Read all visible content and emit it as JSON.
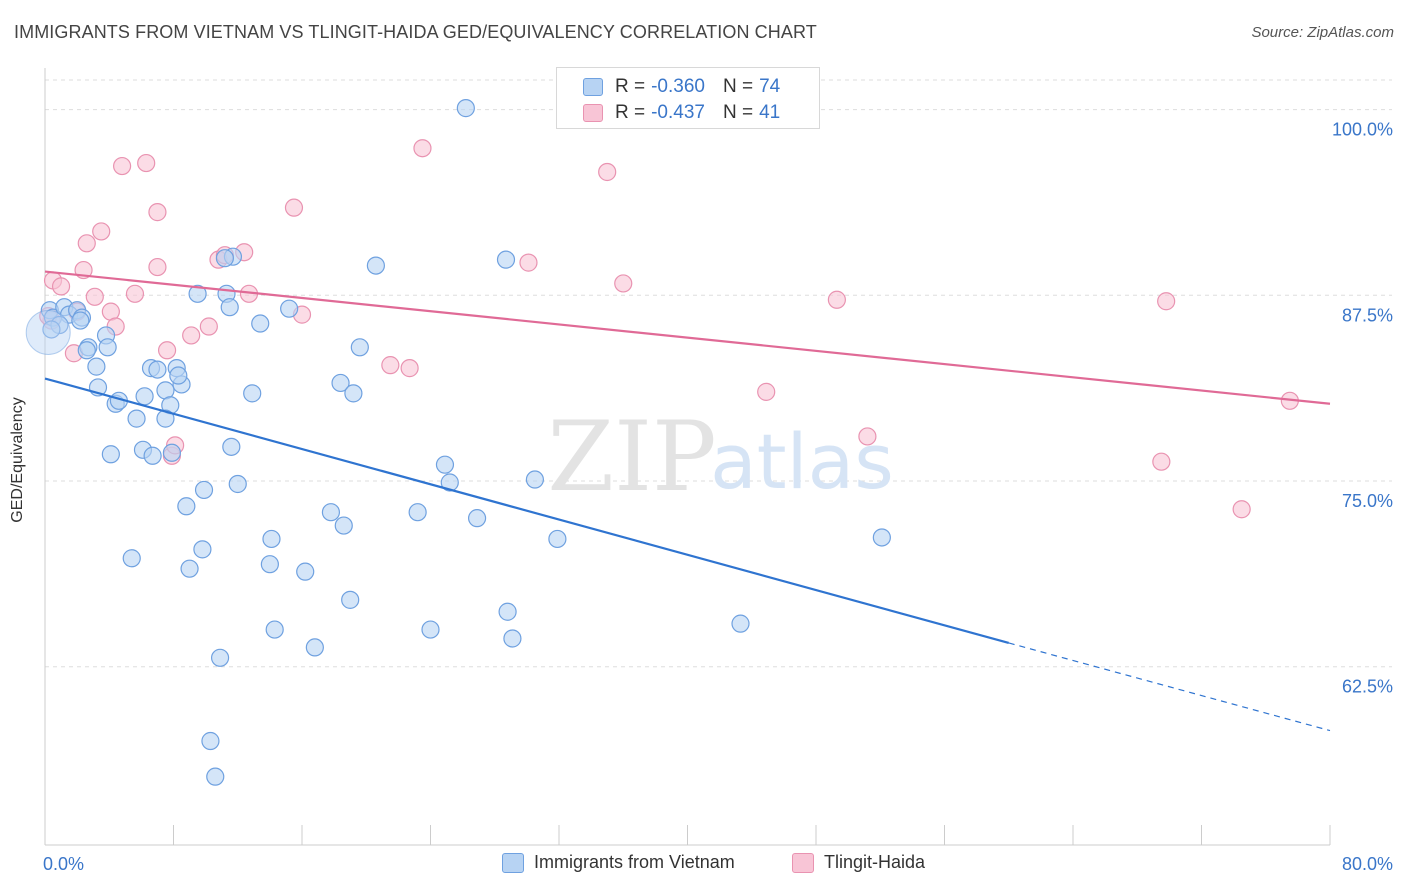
{
  "title": "IMMIGRANTS FROM VIETNAM VS TLINGIT-HAIDA GED/EQUIVALENCY CORRELATION CHART",
  "source": "Source: ZipAtlas.com",
  "watermark": {
    "zip": "ZIP",
    "atlas": "atlas"
  },
  "legend": {
    "r_label": "R =",
    "n_label": "N =",
    "series": [
      {
        "r": "-0.360",
        "n": "74"
      },
      {
        "r": "-0.437",
        "n": "41"
      }
    ]
  },
  "colors": {
    "blue_fill": "#b7d3f3",
    "blue_stroke": "#6fa1e0",
    "blue_line": "#2f74d0",
    "pink_fill": "#f8c5d6",
    "pink_stroke": "#e993b1",
    "pink_line": "#e06a96",
    "tick_label": "#3a76c9",
    "grid": "#dddddd"
  },
  "chart_data": {
    "type": "scatter",
    "title": "IMMIGRANTS FROM VIETNAM VS TLINGIT-HAIDA GED/EQUIVALENCY CORRELATION CHART",
    "xlabel": "",
    "ylabel": "GED/Equivalency",
    "xlim": [
      0,
      80
    ],
    "ylim": [
      50.5,
      102.8
    ],
    "x_tick_labels": [
      "0.0%",
      "80.0%"
    ],
    "y_ticks": [
      62.5,
      75.0,
      87.5,
      100.0
    ],
    "y_tick_labels": [
      "62.5%",
      "75.0%",
      "87.5%",
      "100.0%"
    ],
    "grid": true,
    "legend_position": "bottom",
    "series": [
      {
        "name": "Immigrants from Vietnam",
        "color": "#6fa1e0",
        "trend": {
          "x0": 0,
          "y0": 81.9,
          "x1": 60,
          "y1": 64.1,
          "dashed_to_x": 80,
          "dashed_to_y": 58.2
        },
        "points": [
          [
            0.3,
            86.5
          ],
          [
            0.5,
            86.0
          ],
          [
            1.2,
            86.7
          ],
          [
            1.5,
            86.2
          ],
          [
            2.0,
            86.5
          ],
          [
            2.3,
            86.0
          ],
          [
            0.9,
            85.5
          ],
          [
            2.2,
            85.8
          ],
          [
            2.7,
            84.0
          ],
          [
            3.8,
            84.8
          ],
          [
            2.6,
            83.8
          ],
          [
            3.9,
            84.0
          ],
          [
            3.2,
            82.7
          ],
          [
            6.6,
            82.6
          ],
          [
            7.0,
            82.5
          ],
          [
            8.2,
            82.6
          ],
          [
            8.5,
            81.5
          ],
          [
            8.3,
            82.1
          ],
          [
            3.3,
            81.3
          ],
          [
            4.4,
            80.2
          ],
          [
            4.6,
            80.4
          ],
          [
            6.2,
            80.7
          ],
          [
            7.5,
            81.1
          ],
          [
            7.8,
            80.1
          ],
          [
            5.7,
            79.2
          ],
          [
            7.5,
            79.2
          ],
          [
            6.1,
            77.1
          ],
          [
            4.1,
            76.8
          ],
          [
            6.7,
            76.7
          ],
          [
            7.9,
            76.9
          ],
          [
            11.6,
            77.3
          ],
          [
            12.0,
            74.8
          ],
          [
            9.9,
            74.4
          ],
          [
            11.7,
            90.1
          ],
          [
            11.2,
            90.0
          ],
          [
            9.5,
            87.6
          ],
          [
            11.3,
            87.6
          ],
          [
            11.5,
            86.7
          ],
          [
            13.4,
            85.6
          ],
          [
            15.2,
            86.6
          ],
          [
            12.9,
            80.9
          ],
          [
            8.8,
            73.3
          ],
          [
            17.8,
            72.9
          ],
          [
            18.6,
            72.0
          ],
          [
            14.1,
            71.1
          ],
          [
            9.8,
            70.4
          ],
          [
            5.4,
            69.8
          ],
          [
            9.0,
            69.1
          ],
          [
            14.0,
            69.4
          ],
          [
            16.2,
            68.9
          ],
          [
            19.0,
            67.0
          ],
          [
            14.3,
            65.0
          ],
          [
            16.8,
            63.8
          ],
          [
            10.9,
            63.1
          ],
          [
            10.3,
            57.5
          ],
          [
            10.6,
            55.1
          ],
          [
            19.6,
            84.0
          ],
          [
            20.6,
            89.5
          ],
          [
            18.4,
            81.6
          ],
          [
            19.2,
            80.9
          ],
          [
            24.9,
            76.1
          ],
          [
            25.2,
            74.9
          ],
          [
            23.2,
            72.9
          ],
          [
            26.9,
            72.5
          ],
          [
            28.7,
            89.9
          ],
          [
            30.5,
            75.1
          ],
          [
            31.9,
            71.1
          ],
          [
            26.2,
            100.1
          ],
          [
            28.8,
            66.2
          ],
          [
            29.1,
            64.4
          ],
          [
            24.0,
            65.0
          ],
          [
            43.3,
            65.4
          ],
          [
            52.1,
            71.2
          ],
          [
            0.4,
            85.2
          ]
        ]
      },
      {
        "name": "Tlingit-Haida",
        "color": "#e993b1",
        "trend": {
          "x0": 0,
          "y0": 89.1,
          "x1": 80,
          "y1": 80.2
        },
        "points": [
          [
            0.5,
            88.5
          ],
          [
            1.0,
            88.1
          ],
          [
            0.4,
            85.8
          ],
          [
            2.4,
            89.2
          ],
          [
            2.6,
            91.0
          ],
          [
            3.1,
            87.4
          ],
          [
            3.5,
            91.8
          ],
          [
            4.1,
            86.4
          ],
          [
            4.4,
            85.4
          ],
          [
            1.8,
            83.6
          ],
          [
            4.8,
            96.2
          ],
          [
            6.3,
            96.4
          ],
          [
            7.0,
            93.1
          ],
          [
            7.0,
            89.4
          ],
          [
            5.6,
            87.6
          ],
          [
            7.6,
            83.8
          ],
          [
            7.9,
            76.7
          ],
          [
            8.1,
            77.4
          ],
          [
            9.1,
            84.8
          ],
          [
            10.2,
            85.4
          ],
          [
            10.8,
            89.9
          ],
          [
            11.2,
            90.2
          ],
          [
            12.4,
            90.4
          ],
          [
            12.7,
            87.6
          ],
          [
            15.5,
            93.4
          ],
          [
            16.0,
            86.2
          ],
          [
            21.5,
            82.8
          ],
          [
            22.7,
            82.6
          ],
          [
            23.5,
            97.4
          ],
          [
            30.1,
            89.7
          ],
          [
            35.0,
            95.8
          ],
          [
            36.0,
            88.3
          ],
          [
            44.9,
            81.0
          ],
          [
            49.3,
            87.2
          ],
          [
            51.2,
            78.0
          ],
          [
            69.5,
            76.3
          ],
          [
            69.8,
            87.1
          ],
          [
            74.5,
            73.1
          ],
          [
            77.5,
            80.4
          ],
          [
            0.2,
            86.1
          ],
          [
            2.0,
            86.4
          ]
        ]
      }
    ]
  },
  "bottom_legend": [
    "Immigrants from Vietnam",
    "Tlingit-Haida"
  ]
}
